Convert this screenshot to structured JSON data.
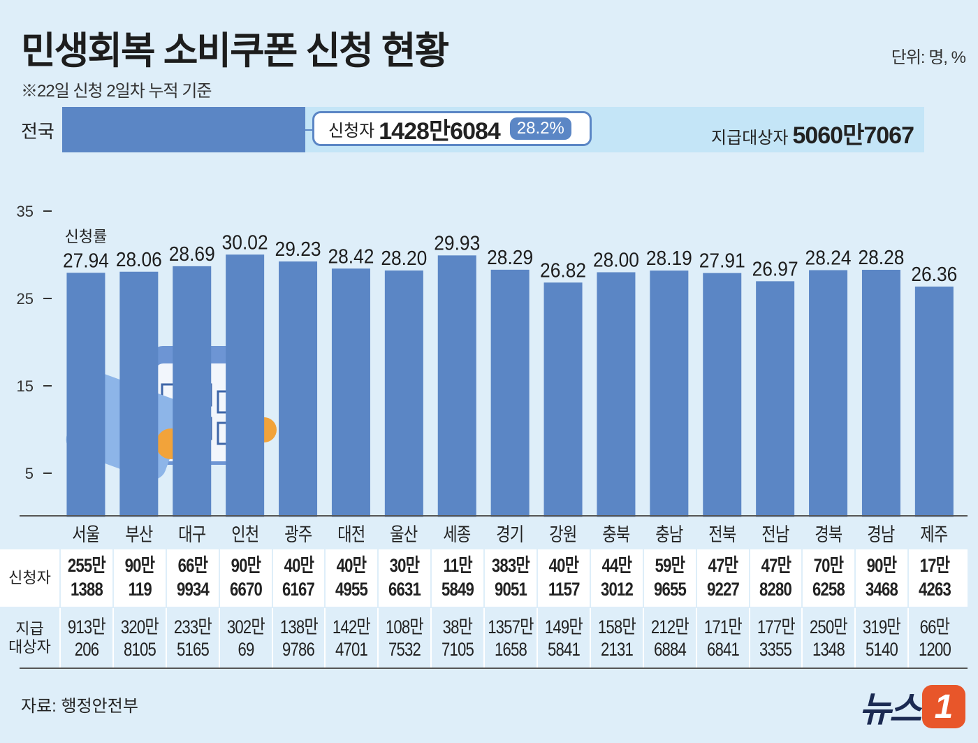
{
  "header": {
    "title": "민생회복 소비쿠폰 신청 현황",
    "subtitle": "※22일 신청 2일차 누적 기준",
    "unit": "단위: 명, %"
  },
  "national": {
    "label": "전국",
    "applicants_label": "신청자",
    "applicants": "1428만6084",
    "rate": "28.2%",
    "rate_value": 28.2,
    "target_label": "지급대상자",
    "target": "5060만7067"
  },
  "table": {
    "applicants_header": "신청자",
    "target_header": "지급\n대상자",
    "applicants": [
      [
        "255만",
        "1388"
      ],
      [
        "90만",
        "119"
      ],
      [
        "66만",
        "9934"
      ],
      [
        "90만",
        "6670"
      ],
      [
        "40만",
        "6167"
      ],
      [
        "40만",
        "4955"
      ],
      [
        "30만",
        "6631"
      ],
      [
        "11만",
        "5849"
      ],
      [
        "383만",
        "9051"
      ],
      [
        "40만",
        "1157"
      ],
      [
        "44만",
        "3012"
      ],
      [
        "59만",
        "9655"
      ],
      [
        "47만",
        "9227"
      ],
      [
        "47만",
        "8280"
      ],
      [
        "70만",
        "6258"
      ],
      [
        "90만",
        "3468"
      ],
      [
        "17만",
        "4263"
      ]
    ],
    "targets": [
      [
        "913만",
        "206"
      ],
      [
        "320만",
        "8105"
      ],
      [
        "233만",
        "5165"
      ],
      [
        "302만",
        "69"
      ],
      [
        "138만",
        "9786"
      ],
      [
        "142만",
        "4701"
      ],
      [
        "108만",
        "7532"
      ],
      [
        "38만",
        "7105"
      ],
      [
        "1357만",
        "1658"
      ],
      [
        "149만",
        "5841"
      ],
      [
        "158만",
        "2131"
      ],
      [
        "212만",
        "6884"
      ],
      [
        "171만",
        "6841"
      ],
      [
        "177만",
        "3355"
      ],
      [
        "250만",
        "1348"
      ],
      [
        "319만",
        "5140"
      ],
      [
        "66만",
        "1200"
      ]
    ]
  },
  "chart_data": {
    "type": "bar",
    "categories": [
      "서울",
      "부산",
      "대구",
      "인천",
      "광주",
      "대전",
      "울산",
      "세종",
      "경기",
      "강원",
      "충북",
      "충남",
      "전북",
      "전남",
      "경북",
      "경남",
      "제주"
    ],
    "values": [
      27.94,
      28.06,
      28.69,
      30.02,
      29.23,
      28.42,
      28.2,
      29.93,
      28.29,
      26.82,
      28.0,
      28.19,
      27.91,
      26.97,
      28.24,
      28.28,
      26.36
    ],
    "value_label": "신청률",
    "yticks": [
      5,
      15,
      25,
      35
    ],
    "ylim": [
      0,
      35
    ],
    "bar_color": "#5b86c5",
    "grid": false
  },
  "footer": {
    "source": "자료: 행정안전부",
    "logo": "뉴스1"
  },
  "colors": {
    "background": "#deeef9",
    "accent": "#5b86c5",
    "track": "#c4e5f7",
    "logo": "#e8562a"
  }
}
